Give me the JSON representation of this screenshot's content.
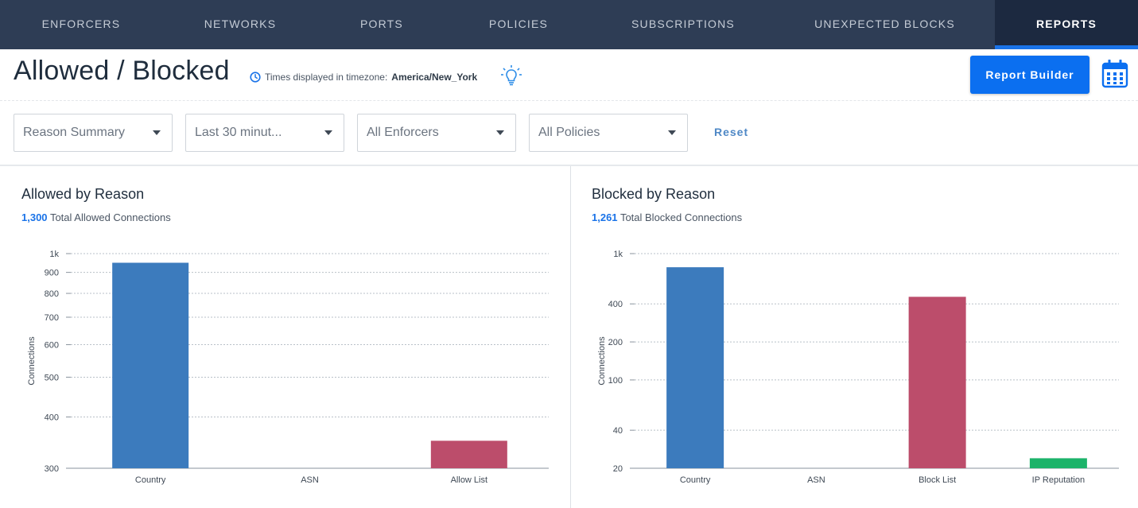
{
  "nav": {
    "tabs": [
      {
        "label": "ENFORCERS"
      },
      {
        "label": "NETWORKS"
      },
      {
        "label": "PORTS"
      },
      {
        "label": "POLICIES"
      },
      {
        "label": "SUBSCRIPTIONS"
      },
      {
        "label": "UNEXPECTED BLOCKS"
      },
      {
        "label": "REPORTS",
        "active": true
      }
    ]
  },
  "header": {
    "title": "Allowed / Blocked",
    "timezone_prefix": "Times displayed in timezone:",
    "timezone_value": "America/New_York",
    "report_builder_label": "Report Builder",
    "icons": [
      "clock-icon",
      "lightbulb-icon",
      "calendar-icon"
    ]
  },
  "filters": {
    "report_type": "Reason Summary",
    "time_range": "Last 30 minut...",
    "enforcers": "All Enforcers",
    "policies": "All Policies",
    "reset_label": "Reset"
  },
  "allowed": {
    "title": "Allowed by Reason",
    "total": "1,300",
    "total_label": "Total Allowed Connections"
  },
  "blocked": {
    "title": "Blocked by Reason",
    "total": "1,261",
    "total_label": "Total Blocked Connections"
  },
  "colors": {
    "nav_bg": "#2e3d55",
    "accent": "#0b6ff0",
    "bar_blue": "#3c7bbd",
    "bar_red": "#bc4d6b",
    "bar_green": "#1cb36a"
  },
  "chart_data": [
    {
      "type": "bar",
      "ylabel": "Connections",
      "yscale": "log",
      "ylim": [
        300,
        1000
      ],
      "yticks": [
        300,
        400,
        500,
        600,
        700,
        800,
        900,
        1000
      ],
      "ytick_labels": [
        "300",
        "400",
        "500",
        "600",
        "700",
        "800",
        "900",
        "1k"
      ],
      "categories": [
        "Country",
        "ASN",
        "Allow List"
      ],
      "values": [
        950,
        null,
        350
      ],
      "bar_colors": [
        "#3c7bbd",
        null,
        "#bc4d6b"
      ],
      "grid": true
    },
    {
      "type": "bar",
      "ylabel": "Connections",
      "yscale": "log",
      "ylim": [
        20,
        1000
      ],
      "yticks": [
        20,
        40,
        100,
        200,
        400,
        1000
      ],
      "ytick_labels": [
        "20",
        "40",
        "100",
        "200",
        "400",
        "1k"
      ],
      "categories": [
        "Country",
        "ASN",
        "Block List",
        "IP Reputation"
      ],
      "values": [
        780,
        null,
        455,
        24
      ],
      "bar_colors": [
        "#3c7bbd",
        null,
        "#bc4d6b",
        "#1cb36a"
      ],
      "grid": true
    }
  ]
}
